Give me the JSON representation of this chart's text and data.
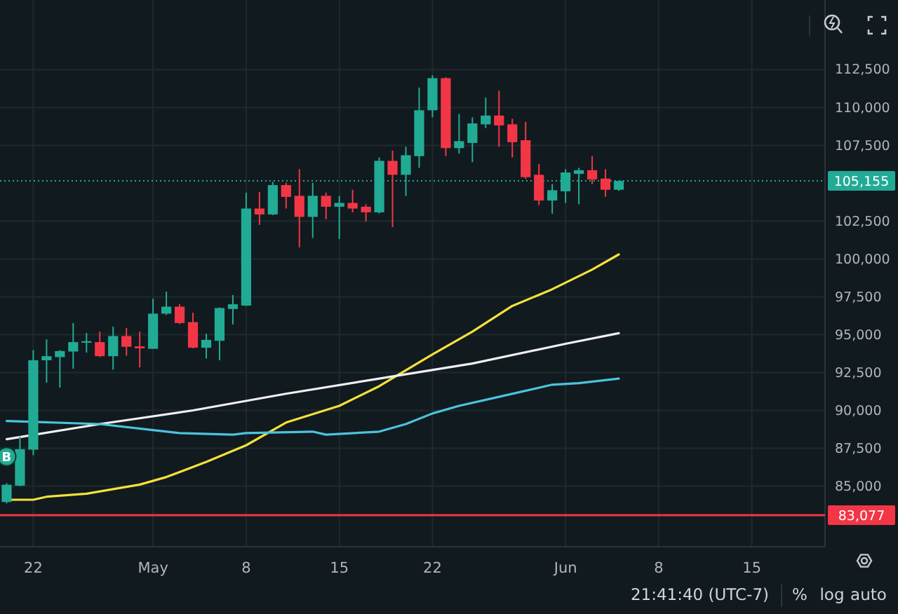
{
  "chart_data": {
    "type": "candlestick",
    "x": [
      "--04-20",
      "--04-21",
      "--04-22",
      "--04-23",
      "--04-24",
      "--04-25",
      "--04-26",
      "--04-27",
      "--04-28",
      "--04-29",
      "--04-30",
      "--05-01",
      "--05-02",
      "--05-03",
      "--05-04",
      "--05-05",
      "--05-06",
      "--05-07",
      "--05-08",
      "--05-09",
      "--05-10",
      "--05-11",
      "--05-12",
      "--05-13",
      "--05-14",
      "--05-15",
      "--05-16",
      "--05-17",
      "--05-18",
      "--05-19",
      "--05-20",
      "--05-21",
      "--05-22",
      "--05-23",
      "--05-24",
      "--05-25",
      "--05-26",
      "--05-27",
      "--05-28",
      "--05-29",
      "--05-30",
      "--05-31",
      "--06-01",
      "--06-02",
      "--06-03",
      "--06-04",
      "--06-05"
    ],
    "ohlc": [
      [
        83950,
        85190,
        83860,
        85090
      ],
      [
        85030,
        88270,
        85000,
        87440
      ],
      [
        87410,
        93980,
        87040,
        93310
      ],
      [
        93310,
        94700,
        91830,
        93580
      ],
      [
        93520,
        93980,
        91510,
        93920
      ],
      [
        93890,
        95770,
        92750,
        94510
      ],
      [
        94470,
        95120,
        93820,
        94570
      ],
      [
        94510,
        95210,
        93520,
        93580
      ],
      [
        93580,
        95530,
        92690,
        94910
      ],
      [
        94910,
        95440,
        93610,
        94200
      ],
      [
        94230,
        95210,
        92840,
        94100
      ],
      [
        94070,
        97380,
        94070,
        96390
      ],
      [
        96390,
        97840,
        96300,
        96850
      ],
      [
        96850,
        97010,
        95700,
        95770
      ],
      [
        95830,
        96450,
        94100,
        94140
      ],
      [
        94140,
        95070,
        93430,
        94660
      ],
      [
        94600,
        96800,
        93310,
        96760
      ],
      [
        96700,
        97620,
        95680,
        97010
      ],
      [
        96920,
        104380,
        96900,
        103330
      ],
      [
        103330,
        104420,
        102250,
        102940
      ],
      [
        102940,
        105090,
        102900,
        104880
      ],
      [
        104880,
        105030,
        103330,
        104100
      ],
      [
        104170,
        105930,
        100770,
        102780
      ],
      [
        102780,
        105030,
        101390,
        104170
      ],
      [
        104170,
        104380,
        102620,
        103450
      ],
      [
        103450,
        104170,
        101320,
        103700
      ],
      [
        103700,
        104570,
        103080,
        103330
      ],
      [
        103450,
        103610,
        102470,
        103080
      ],
      [
        103080,
        106700,
        103000,
        106480
      ],
      [
        106480,
        107160,
        102100,
        105560
      ],
      [
        105560,
        107410,
        104170,
        106850
      ],
      [
        106790,
        111320,
        106020,
        109820
      ],
      [
        109820,
        112130,
        109350,
        111940
      ],
      [
        111940,
        112000,
        106790,
        107320
      ],
      [
        107320,
        109570,
        106950,
        107780
      ],
      [
        107660,
        109350,
        106390,
        108950
      ],
      [
        108890,
        110650,
        108640,
        109470
      ],
      [
        109470,
        111110,
        107410,
        108820
      ],
      [
        108890,
        109260,
        106700,
        107710
      ],
      [
        107840,
        109050,
        105280,
        105400
      ],
      [
        105560,
        106270,
        103550,
        103860
      ],
      [
        103860,
        104940,
        102990,
        104540
      ],
      [
        104470,
        105930,
        103700,
        105710
      ],
      [
        105620,
        106020,
        103610,
        105860
      ],
      [
        105860,
        106790,
        104940,
        105250
      ],
      [
        105310,
        105930,
        104100,
        104570
      ],
      [
        104570,
        105160,
        104500,
        105155
      ]
    ],
    "colors": [
      "#22ab94",
      "#22ab94",
      "#22ab94",
      "#22ab94",
      "#22ab94",
      "#22ab94",
      "#22ab94",
      "#f23645",
      "#22ab94",
      "#f23645",
      "#f23645",
      "#22ab94",
      "#22ab94",
      "#f23645",
      "#f23645",
      "#22ab94",
      "#22ab94",
      "#22ab94",
      "#22ab94",
      "#f23645",
      "#22ab94",
      "#f23645",
      "#f23645",
      "#22ab94",
      "#f23645",
      "#22ab94",
      "#f23645",
      "#f23645",
      "#22ab94",
      "#f23645",
      "#22ab94",
      "#22ab94",
      "#22ab94",
      "#f23645",
      "#22ab94",
      "#22ab94",
      "#22ab94",
      "#f23645",
      "#f23645",
      "#f23645",
      "#f23645",
      "#22ab94",
      "#22ab94",
      "#22ab94",
      "#f23645",
      "#f23645",
      "#22ab94"
    ],
    "series": [
      {
        "type": "line",
        "color": "#f5e13b",
        "x": [
          "--04-20",
          "--04-22",
          "--04-23",
          "--04-26",
          "--04-30",
          "--05-02",
          "--05-05",
          "--05-08",
          "--05-11",
          "--05-15",
          "--05-18",
          "--05-22",
          "--05-25",
          "--05-28",
          "--05-31",
          "--06-03",
          "--06-05"
        ],
        "values": [
          84100,
          84100,
          84300,
          84500,
          85100,
          85600,
          86600,
          87700,
          89200,
          90300,
          91600,
          93700,
          95200,
          96900,
          98000,
          99300,
          100300
        ]
      },
      {
        "type": "line",
        "color": "#f0f0f0",
        "x": [
          "--04-20",
          "--04-27",
          "--05-04",
          "--05-11",
          "--05-18",
          "--05-25",
          "--06-01",
          "--06-05"
        ],
        "values": [
          88100,
          89100,
          90000,
          91100,
          92100,
          93100,
          94400,
          95100
        ]
      },
      {
        "type": "line",
        "color": "#4cc3dc",
        "x": [
          "--04-20",
          "--04-27",
          "--05-01",
          "--05-03",
          "--05-07",
          "--05-08",
          "--05-13",
          "--05-14",
          "--05-18",
          "--05-20",
          "--05-22",
          "--05-24",
          "--05-27",
          "--05-31",
          "--06-02",
          "--06-05"
        ],
        "values": [
          89300,
          89100,
          88700,
          88500,
          88400,
          88500,
          88600,
          88400,
          88600,
          89100,
          89800,
          90300,
          90900,
          91700,
          91800,
          92100
        ]
      }
    ],
    "xlim": [
      "--04-19T12:00",
      "--06-20T12:00"
    ],
    "xticks": [
      {
        "value": "--04-22",
        "label": "22"
      },
      {
        "value": "--05-01",
        "label": "May"
      },
      {
        "value": "--05-08",
        "label": "8"
      },
      {
        "value": "--05-15",
        "label": "15"
      },
      {
        "value": "--05-22",
        "label": "22"
      },
      {
        "value": "--06-01",
        "label": "Jun"
      },
      {
        "value": "--06-08",
        "label": "8"
      },
      {
        "value": "--06-15",
        "label": "15"
      }
    ],
    "ylim": [
      81000,
      117100
    ],
    "yticks": [
      {
        "value": 85000,
        "label": "85,000"
      },
      {
        "value": 87500,
        "label": "87,500"
      },
      {
        "value": 90000,
        "label": "90,000"
      },
      {
        "value": 92500,
        "label": "92,500"
      },
      {
        "value": 95000,
        "label": "95,000"
      },
      {
        "value": 97500,
        "label": "97,500"
      },
      {
        "value": 100000,
        "label": "100,000"
      },
      {
        "value": 102500,
        "label": "102,500"
      },
      {
        "value": 107500,
        "label": "107,500"
      },
      {
        "value": 110000,
        "label": "110,000"
      },
      {
        "value": 112500,
        "label": "112,500"
      }
    ],
    "ref_lines": [
      {
        "axis": "y",
        "value": 83077,
        "label": "83,077",
        "color": "#f23645",
        "line_style": "solid"
      },
      {
        "axis": "y",
        "value": 105155,
        "label": "105,155",
        "color": "#22ab94",
        "line_style": "dotted"
      }
    ],
    "annotations": [
      {
        "text": "B",
        "x": "--04-20",
        "y": 86950
      },
      "21:41:40 (UTC-7)",
      "%",
      "log",
      "auto"
    ],
    "grid": true
  }
}
